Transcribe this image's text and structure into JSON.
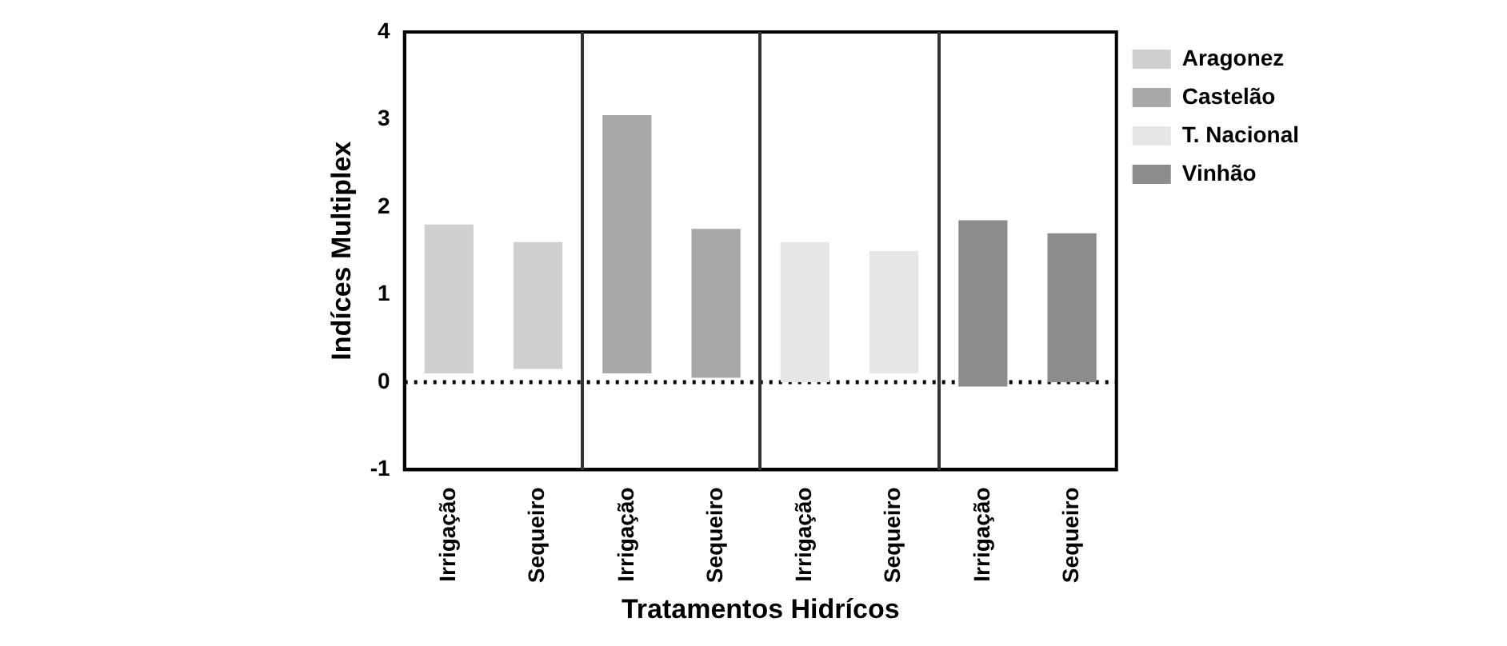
{
  "chart_data": {
    "type": "bar",
    "xlabel": "Tratamentos Hidrícos",
    "ylabel": "Indíces Multiplex",
    "categories": [
      "Irrigação",
      "Sequeiro",
      "Irrigação",
      "Sequeiro",
      "Irrigação",
      "Sequeiro",
      "Irrigação",
      "Sequeiro"
    ],
    "series": [
      {
        "name": "Aragonez",
        "color": "#cfcfcf",
        "values": [
          1.7,
          1.45,
          null,
          null,
          null,
          null,
          null,
          null
        ],
        "base": [
          0.1,
          0.15,
          null,
          null,
          null,
          null,
          null,
          null
        ]
      },
      {
        "name": "Castelão",
        "color": "#a8a8a8",
        "values": [
          null,
          null,
          2.95,
          1.7,
          null,
          null,
          null,
          null
        ],
        "base": [
          null,
          null,
          0.1,
          0.05,
          null,
          null,
          null,
          null
        ]
      },
      {
        "name": "T. Nacional",
        "color": "#e6e6e6",
        "values": [
          null,
          null,
          null,
          null,
          1.6,
          1.4,
          null,
          null
        ],
        "base": [
          null,
          null,
          null,
          null,
          0,
          0.1,
          null,
          null
        ]
      },
      {
        "name": "Vinhão",
        "color": "#8c8c8c",
        "values": [
          null,
          null,
          null,
          null,
          null,
          null,
          1.9,
          1.7
        ],
        "base": [
          null,
          null,
          null,
          null,
          null,
          null,
          -0.05,
          0
        ]
      }
    ],
    "ylim": [
      -1,
      4
    ],
    "yticks": [
      -1,
      0,
      1,
      2,
      3,
      4
    ],
    "ref_lines": [
      {
        "axis": "y",
        "value": 0,
        "line_style": "dotted"
      }
    ],
    "grid": false,
    "legend": "right"
  }
}
